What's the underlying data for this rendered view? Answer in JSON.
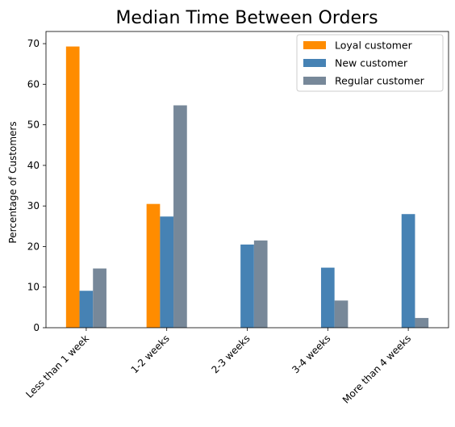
{
  "chart_data": {
    "type": "bar",
    "title": "Median Time Between Orders",
    "xlabel": "",
    "ylabel": "Percentage of Customers",
    "categories": [
      "Less than 1 week",
      "1-2 weeks",
      "2-3 weeks",
      "3-4 weeks",
      "More than 4 weeks"
    ],
    "series": [
      {
        "name": "Loyal customer",
        "color": "#ff8c00",
        "values": [
          69.3,
          30.5,
          0,
          0,
          0
        ]
      },
      {
        "name": "New customer",
        "color": "#4682b4",
        "values": [
          9.1,
          27.4,
          20.5,
          14.8,
          28.0
        ]
      },
      {
        "name": "Regular customer",
        "color": "#778899",
        "values": [
          14.6,
          54.8,
          21.5,
          6.7,
          2.4
        ]
      }
    ],
    "ylim": [
      0,
      73
    ],
    "yticks": [
      0,
      10,
      20,
      30,
      40,
      50,
      60,
      70
    ],
    "grid": false,
    "legend_position": "top-right"
  }
}
